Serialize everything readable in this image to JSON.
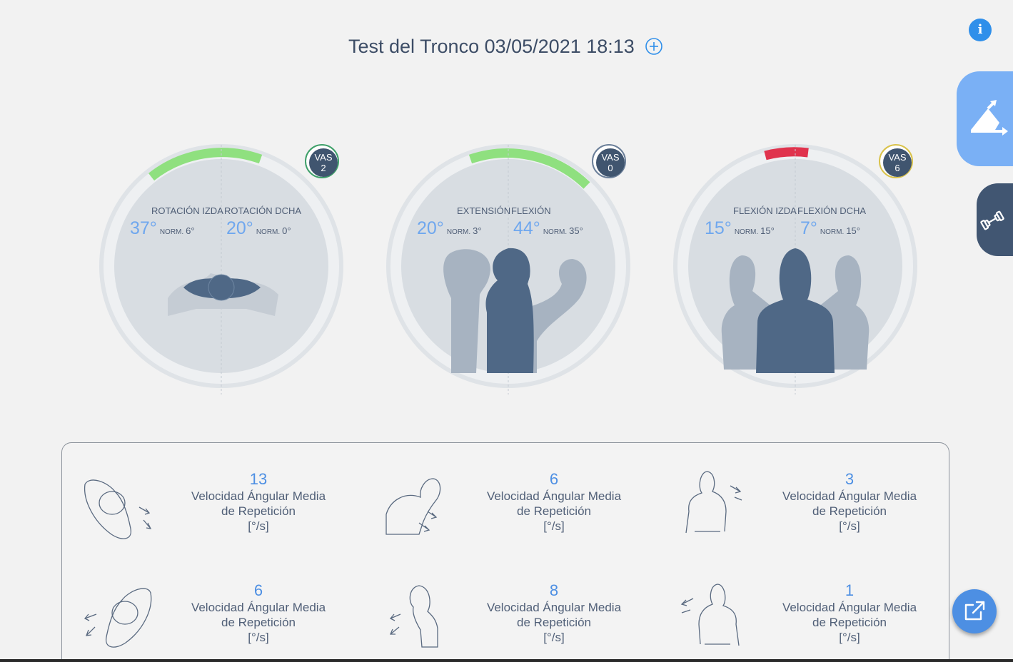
{
  "header": {
    "title": "Test del Tronco 03/05/2021 18:13"
  },
  "icons": {
    "info": "i",
    "add": "plus-circle-icon",
    "range": "range-angle-icon",
    "exercise": "dumbbell-icon",
    "export": "external-link-icon"
  },
  "colors": {
    "green": "#8fe07f",
    "red": "#e0334d",
    "blue": "#6fa7ee",
    "dark": "#40556f"
  },
  "gauges": [
    {
      "left_label": "ROTACIÓN IZDA",
      "right_label": "ROTACIÓN DCHA",
      "left_value": "37°",
      "left_norm_label": "NORM.",
      "left_norm": "6°",
      "right_value": "20°",
      "right_norm_label": "NORM.",
      "right_norm": "0°",
      "vas_label": "VAS",
      "vas_value": "2"
    },
    {
      "left_label": "EXTENSIÓN",
      "right_label": "FLEXIÓN",
      "left_value": "20°",
      "left_norm_label": "NORM.",
      "left_norm": "3°",
      "right_value": "44°",
      "right_norm_label": "NORM.",
      "right_norm": "35°",
      "vas_label": "VAS",
      "vas_value": "0"
    },
    {
      "left_label": "FLEXIÓN IZDA",
      "right_label": "FLEXIÓN DCHA",
      "left_value": "15°",
      "left_norm_label": "NORM.",
      "left_norm": "15°",
      "right_value": "7°",
      "right_norm_label": "NORM.",
      "right_norm": "15°",
      "vas_label": "VAS",
      "vas_value": "6"
    }
  ],
  "metrics": [
    {
      "value": "13",
      "line1": "Velocidad Ángular Media",
      "line2": "de Repetición",
      "unit": "[°/s]"
    },
    {
      "value": "6",
      "line1": "Velocidad Ángular Media",
      "line2": "de Repetición",
      "unit": "[°/s]"
    },
    {
      "value": "3",
      "line1": "Velocidad Ángular Media",
      "line2": "de Repetición",
      "unit": "[°/s]"
    },
    {
      "value": "6",
      "line1": "Velocidad Ángular Media",
      "line2": "de Repetición",
      "unit": "[°/s]"
    },
    {
      "value": "8",
      "line1": "Velocidad Ángular Media",
      "line2": "de Repetición",
      "unit": "[°/s]"
    },
    {
      "value": "1",
      "line1": "Velocidad Ángular Media",
      "line2": "de Repetición",
      "unit": "[°/s]"
    }
  ]
}
